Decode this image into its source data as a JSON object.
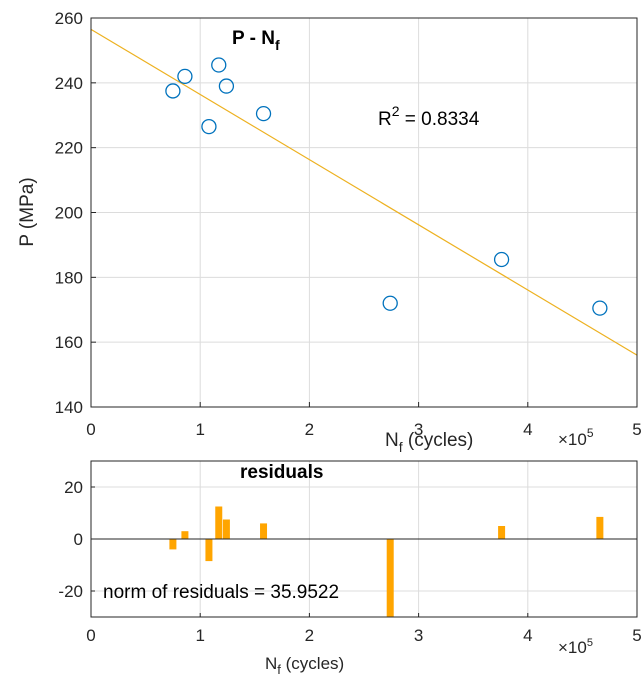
{
  "chart_data": [
    {
      "type": "scatter",
      "title": "P - N",
      "title_sub": "f",
      "xlabel": "N",
      "xlabel_sub": "f",
      "xlabel_rest": " (cycles)",
      "ylabel": "P (MPa)",
      "x_exponent_base": "×10",
      "x_exponent_power": "5",
      "xlim": [
        0,
        5
      ],
      "ylim": [
        140,
        260
      ],
      "xticks": [
        0,
        1,
        2,
        3,
        4,
        5
      ],
      "yticks": [
        140,
        160,
        180,
        200,
        220,
        240,
        260
      ],
      "grid": true,
      "marker_color": "#0072BD",
      "fit_color": "#EDB120",
      "series": [
        {
          "points": [
            {
              "x": 0.75,
              "y": 237.5
            },
            {
              "x": 0.86,
              "y": 242.0
            },
            {
              "x": 1.08,
              "y": 226.5
            },
            {
              "x": 1.17,
              "y": 245.5
            },
            {
              "x": 1.24,
              "y": 239.0
            },
            {
              "x": 1.58,
              "y": 230.5
            },
            {
              "x": 2.74,
              "y": 172.0
            },
            {
              "x": 3.76,
              "y": 185.5
            },
            {
              "x": 4.66,
              "y": 170.5
            }
          ]
        }
      ],
      "fit_line": {
        "x": [
          0,
          5
        ],
        "y": [
          256.5,
          156.0
        ]
      },
      "annotation_base": "R",
      "annotation_power": "2",
      "annotation_rest": " = 0.8334"
    },
    {
      "type": "bar",
      "title": "residuals",
      "xlabel": "N",
      "xlabel_sub": "f",
      "xlabel_rest": " (cycles)",
      "x_exponent_base": "×10",
      "x_exponent_power": "5",
      "xlim": [
        0,
        5
      ],
      "ylim": [
        -30,
        30
      ],
      "xticks": [
        0,
        1,
        2,
        3,
        4,
        5
      ],
      "yticks": [
        -20,
        0,
        20
      ],
      "grid": true,
      "bar_color": "#FFA500",
      "bars": [
        {
          "x": 0.75,
          "value": -4.0
        },
        {
          "x": 0.86,
          "value": 3.0
        },
        {
          "x": 1.08,
          "value": -8.5
        },
        {
          "x": 1.17,
          "value": 12.5
        },
        {
          "x": 1.24,
          "value": 7.5
        },
        {
          "x": 1.58,
          "value": 6.0
        },
        {
          "x": 2.74,
          "value": -30.0
        },
        {
          "x": 3.76,
          "value": 5.0
        },
        {
          "x": 4.66,
          "value": 8.5
        }
      ],
      "annotation": "norm of residuals = 35.9522"
    }
  ]
}
